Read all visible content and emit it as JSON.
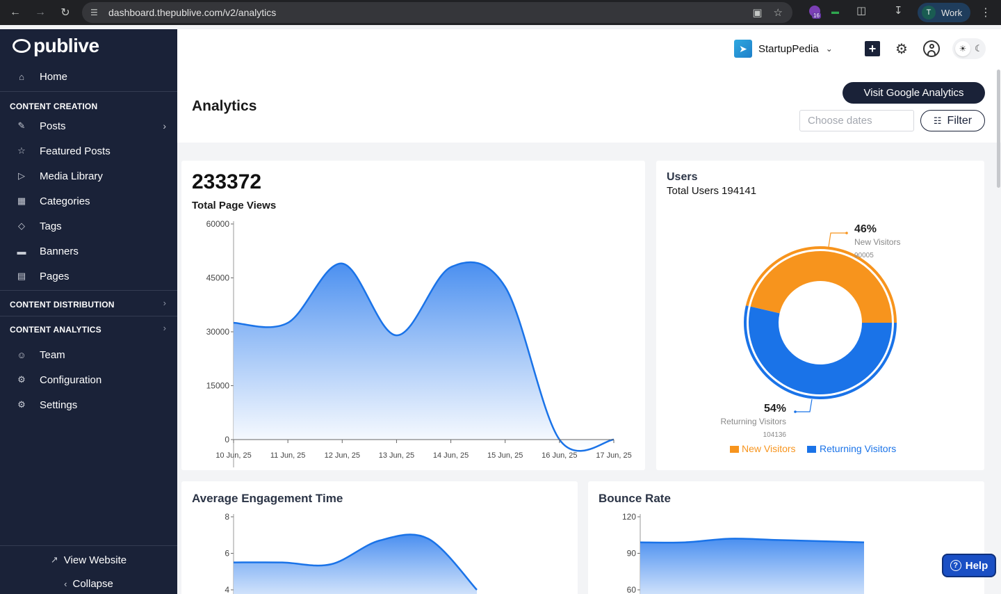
{
  "browser": {
    "url": "dashboard.thepublive.com/v2/analytics",
    "extension_badge": "16",
    "profile_initial": "T",
    "profile_label": "Work"
  },
  "sidebar": {
    "logo": "publive",
    "home": "Home",
    "content_creation_label": "CONTENT CREATION",
    "creation_items": [
      {
        "label": "Posts",
        "icon": "edit-icon"
      },
      {
        "label": "Featured Posts",
        "icon": "star-icon"
      },
      {
        "label": "Media Library",
        "icon": "media-icon"
      },
      {
        "label": "Categories",
        "icon": "categories-icon"
      },
      {
        "label": "Tags",
        "icon": "tag-icon"
      },
      {
        "label": "Banners",
        "icon": "banner-icon"
      },
      {
        "label": "Pages",
        "icon": "page-icon"
      }
    ],
    "content_distribution_label": "CONTENT DISTRIBUTION",
    "content_analytics_label": "CONTENT ANALYTICS",
    "other_items": [
      {
        "label": "Team",
        "icon": "team-icon"
      },
      {
        "label": "Configuration",
        "icon": "configuration-icon"
      },
      {
        "label": "Settings",
        "icon": "settings-icon"
      }
    ],
    "view_website": "View Website",
    "collapse": "Collapse"
  },
  "header": {
    "workspace_name": "StartupPedia"
  },
  "page": {
    "title": "Analytics",
    "visit_ga_label": "Visit Google Analytics",
    "date_placeholder": "Choose dates",
    "filter_label": "Filter"
  },
  "page_views": {
    "total": "233372",
    "label": "Total Page Views"
  },
  "users": {
    "title": "Users",
    "total_label": "Total Users",
    "total_value": "194141",
    "new_pct": "46%",
    "new_label": "New Visitors",
    "new_count": "90005",
    "returning_pct": "54%",
    "returning_label": "Returning Visitors",
    "returning_count": "104136",
    "legend_new": "New Visitors",
    "legend_returning": "Returning Visitors",
    "color_new": "#f7941d",
    "color_returning": "#1a73e8"
  },
  "engagement": {
    "title": "Average Engagement Time"
  },
  "bounce": {
    "title": "Bounce Rate"
  },
  "help_label": "Help",
  "chart_data": [
    {
      "type": "area",
      "title": "Total Page Views",
      "x": [
        "10 Jun, 25",
        "11 Jun, 25",
        "12 Jun, 25",
        "13 Jun, 25",
        "14 Jun, 25",
        "15 Jun, 25",
        "16 Jun, 25",
        "17 Jun, 25"
      ],
      "values": [
        32500,
        32500,
        49000,
        29000,
        48000,
        42500,
        0,
        0
      ],
      "yticks": [
        0,
        15000,
        30000,
        45000,
        60000
      ],
      "ylim": [
        0,
        60000
      ],
      "color": "#1a73e8"
    },
    {
      "type": "pie",
      "title": "Users",
      "categories": [
        "New Visitors",
        "Returning Visitors"
      ],
      "values": [
        90005,
        104136
      ],
      "colors": [
        "#f7941d",
        "#1a73e8"
      ]
    },
    {
      "type": "area",
      "title": "Average Engagement Time",
      "yticks": [
        4,
        6,
        8
      ],
      "values": [
        5.5,
        5.5,
        5.4,
        6.7,
        6.8,
        2.5
      ],
      "ylim": [
        4,
        8
      ],
      "color": "#1a73e8"
    },
    {
      "type": "area",
      "title": "Bounce Rate",
      "yticks": [
        60,
        90,
        120
      ],
      "values": [
        99,
        99,
        102,
        101,
        100,
        99
      ],
      "ylim": [
        60,
        120
      ],
      "color": "#1a73e8"
    }
  ]
}
